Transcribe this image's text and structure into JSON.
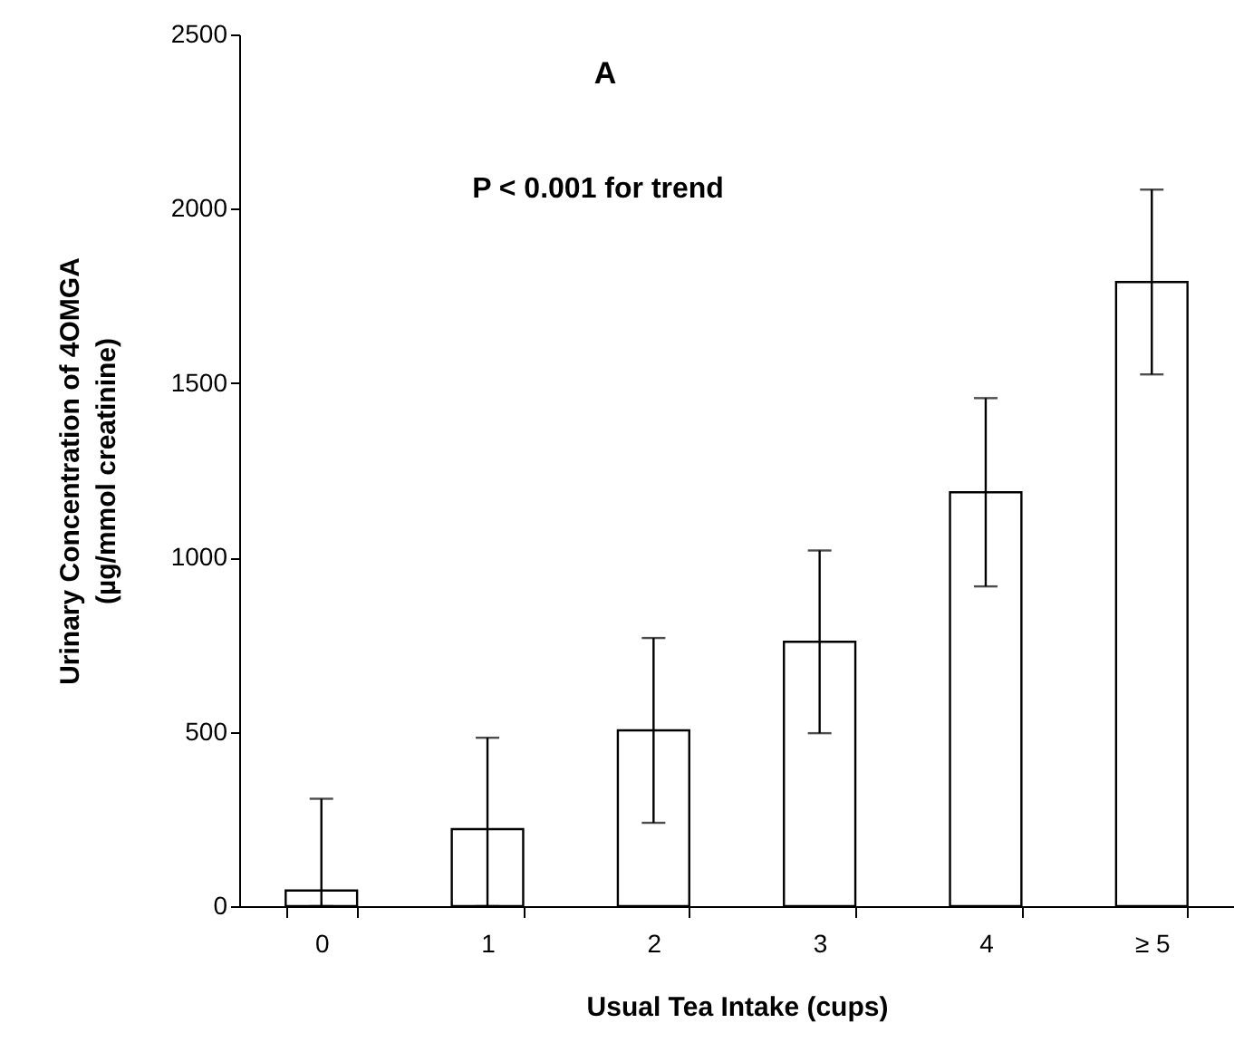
{
  "chart_data": {
    "type": "bar",
    "categories": [
      "0",
      "1",
      "2",
      "3",
      "4",
      "≥ 5"
    ],
    "values": [
      45,
      221,
      504,
      758,
      1187,
      1790
    ],
    "errors": [
      [
        0,
        308
      ],
      [
        0,
        483
      ],
      265,
      262,
      270,
      265
    ],
    "color": "#ffffff",
    "xlabel": "Usual Tea Intake (cups)",
    "ylabel": "Urinary Concentration of 4OMGA\n(µg/mmol creatinine)",
    "ylim": [
      0,
      2500
    ],
    "yticks": [
      0,
      500,
      1000,
      1500,
      2000,
      2500
    ],
    "annotations": [
      "A",
      "P < 0.001 for trend"
    ]
  }
}
